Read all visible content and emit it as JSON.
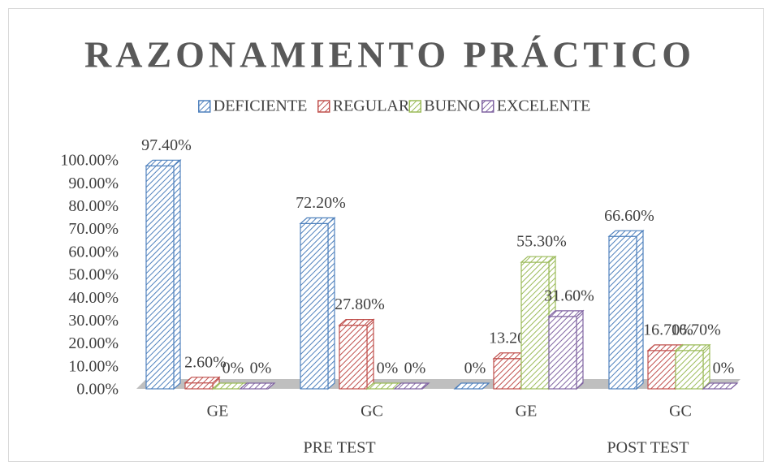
{
  "chart_data": {
    "type": "bar3d",
    "title": "RAZONAMIENTO PRÁCTICO",
    "categories": [
      "GE",
      "GC",
      "GE",
      "GC"
    ],
    "groups": [
      "PRE TEST",
      "POST TEST"
    ],
    "series": [
      {
        "name": "DEFICIENTE",
        "color": "#4f81bd",
        "values": [
          97.4,
          72.2,
          0,
          66.6
        ],
        "value_labels": [
          "97.40%",
          "72.20%",
          "0%",
          "66.60%"
        ]
      },
      {
        "name": "REGULAR",
        "color": "#c0504d",
        "values": [
          2.6,
          27.8,
          13.2,
          16.7
        ],
        "value_labels": [
          "2.60%",
          "27.80%",
          "13.20%",
          "16.70%"
        ]
      },
      {
        "name": "BUENO",
        "color": "#9bbb59",
        "values": [
          0,
          0,
          55.3,
          16.7
        ],
        "value_labels": [
          "0%",
          "0%",
          "55.30%",
          "16.70%"
        ]
      },
      {
        "name": "EXCELENTE",
        "color": "#8064a2",
        "values": [
          0,
          0,
          31.6,
          0
        ],
        "value_labels": [
          "0%",
          "0%",
          "31.60%",
          "0%"
        ]
      }
    ],
    "ylim": [
      0,
      100
    ],
    "yticks": [
      {
        "value": 0,
        "label": "0.00%"
      },
      {
        "value": 10,
        "label": "10.00%"
      },
      {
        "value": 20,
        "label": "20.00%"
      },
      {
        "value": 30,
        "label": "30.00%"
      },
      {
        "value": 40,
        "label": "40.00%"
      },
      {
        "value": 50,
        "label": "50.00%"
      },
      {
        "value": 60,
        "label": "60.00%"
      },
      {
        "value": 70,
        "label": "70.00%"
      },
      {
        "value": 80,
        "label": "80.00%"
      },
      {
        "value": 90,
        "label": "90.00%"
      },
      {
        "value": 100,
        "label": "100.00%"
      }
    ],
    "legend": "top"
  }
}
